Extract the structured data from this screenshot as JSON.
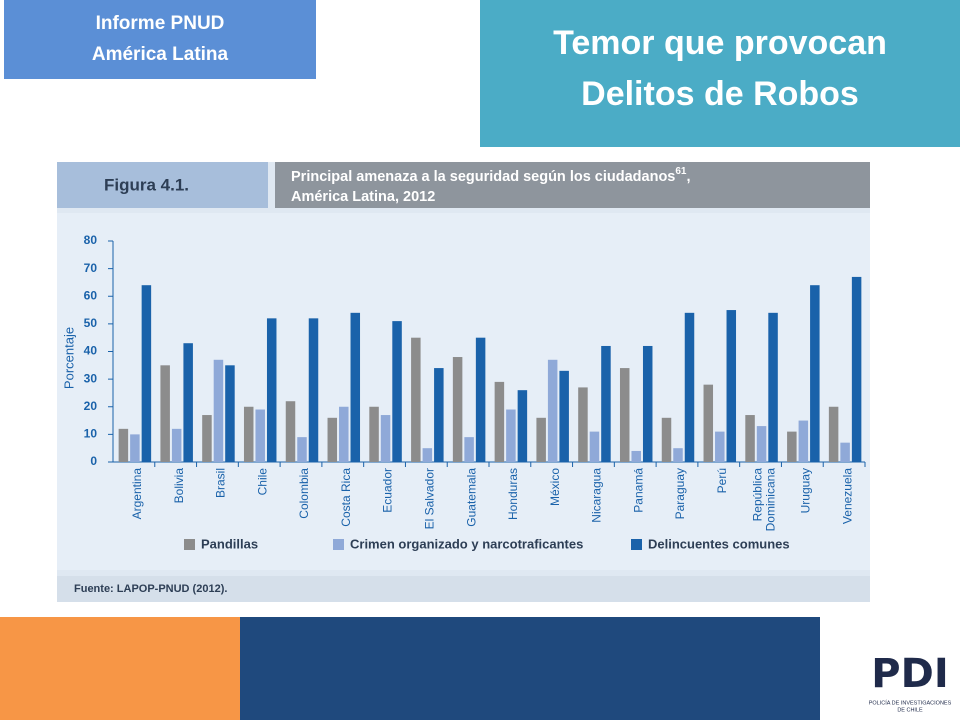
{
  "header": {
    "badge": [
      "Informe PNUD",
      "América Latina"
    ],
    "title": [
      "Temor que provocan",
      "Delitos de Robos"
    ]
  },
  "figure": {
    "label": "Figura 4.1.",
    "title": [
      "Principal amenaza a la seguridad según los ciudadanos",
      ", "
    ],
    "footnote": "61",
    "title_line2": "América Latina, 2012",
    "source": "Fuente: LAPOP-PNUD (2012)."
  },
  "logo": {
    "name": "PDI",
    "subtitle": [
      "POLICÍA DE INVESTIGACIONES",
      "DE CHILE"
    ]
  },
  "chart_data": {
    "type": "bar",
    "y_label": "Porcentaje",
    "categories": [
      "Argentina",
      "Bolivia",
      "Brasil",
      "Chile",
      "Colombia",
      "Costa Rica",
      "Ecuador",
      "El Salvador",
      "Guatemala",
      "Honduras",
      "México",
      "Nicaragua",
      "Panamá",
      "Paraguay",
      "Perú",
      "República Dominicana",
      "Uruguay",
      "Venezuela"
    ],
    "series": [
      {
        "name": "Pandillas",
        "color": "#8c8c8c",
        "values": [
          12,
          35,
          17,
          20,
          22,
          16,
          20,
          45,
          38,
          29,
          16,
          27,
          34,
          16,
          28,
          17,
          11,
          20
        ]
      },
      {
        "name": "Crimen organizado y narcotraficantes",
        "color": "#8fa9d8",
        "values": [
          10,
          12,
          37,
          19,
          9,
          20,
          17,
          5,
          9,
          19,
          37,
          11,
          4,
          5,
          11,
          13,
          15,
          7
        ]
      },
      {
        "name": "Delincuentes comunes",
        "color": "#1a62aa",
        "values": [
          64,
          43,
          35,
          52,
          52,
          54,
          51,
          34,
          45,
          26,
          33,
          42,
          42,
          54,
          55,
          54,
          64,
          67
        ]
      }
    ],
    "ylim": [
      0,
      80
    ],
    "yticks": [
      0,
      10,
      20,
      30,
      40,
      50,
      60,
      70,
      80
    ]
  }
}
